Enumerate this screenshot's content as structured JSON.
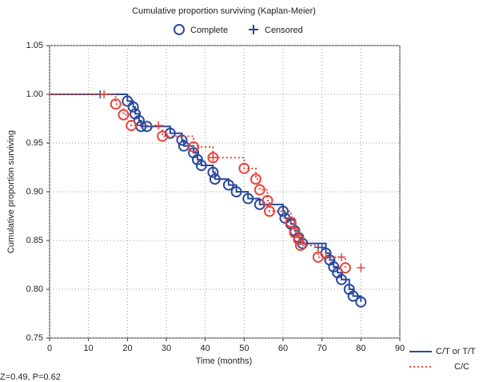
{
  "chart_data": {
    "type": "km",
    "title": "Cumulative proportion surviving (Kaplan-Meier)",
    "marker_legend": [
      "Complete",
      "Censored"
    ],
    "x_label": "Time (months)",
    "y_label": "Cumulative proportion surviving",
    "annotation": "Z=0.49, P=0.62",
    "xlim": [
      0,
      90
    ],
    "xticks": [
      0,
      10,
      20,
      30,
      40,
      50,
      60,
      70,
      80,
      90
    ],
    "ylim": [
      0.75,
      1.05
    ],
    "yticks": [
      0.75,
      {
        "value": 0.8,
        "label": "0.80"
      },
      0.85,
      {
        "value": 0.9,
        "label": "0.90"
      },
      0.95,
      {
        "value": 1,
        "label": "1.00"
      },
      1.05
    ],
    "grid": true,
    "series": [
      {
        "name": "C/T or T/T",
        "color": "#2b4a9e",
        "style": "solid",
        "x": [
          0,
          20,
          21.5,
          22,
          23,
          23.5,
          25,
          31,
          34,
          34.5,
          37,
          38,
          39,
          42,
          42.5,
          46,
          48,
          51,
          54,
          60,
          60.5,
          62,
          63,
          64,
          65,
          71,
          72,
          73,
          74,
          75,
          77,
          78,
          80
        ],
        "values": [
          1,
          0.993,
          0.987,
          0.98,
          0.973,
          0.967,
          0.967,
          0.96,
          0.953,
          0.947,
          0.94,
          0.933,
          0.927,
          0.92,
          0.913,
          0.907,
          0.9,
          0.893,
          0.887,
          0.88,
          0.873,
          0.867,
          0.86,
          0.853,
          0.847,
          0.837,
          0.83,
          0.823,
          0.817,
          0.81,
          0.8,
          0.793,
          0.787
        ],
        "censored_x": [
          13,
          69,
          70
        ],
        "censored_values": [
          1,
          0.843,
          0.843
        ]
      },
      {
        "name": "C/C",
        "color": "#e8463a",
        "style": "dotted",
        "x": [
          0,
          17,
          19,
          21,
          29,
          37,
          42,
          50,
          53,
          54,
          56,
          56.5,
          62,
          63,
          64,
          64.5,
          69,
          76
        ],
        "values": [
          1,
          0.99,
          0.979,
          0.968,
          0.957,
          0.946,
          0.935,
          0.924,
          0.913,
          0.902,
          0.891,
          0.88,
          0.869,
          0.858,
          0.851,
          0.845,
          0.833,
          0.822
        ],
        "censored_x": [
          14,
          28,
          42,
          71,
          75,
          80
        ],
        "censored_values": [
          1,
          0.968,
          0.935,
          0.833,
          0.833,
          0.822
        ]
      }
    ]
  }
}
